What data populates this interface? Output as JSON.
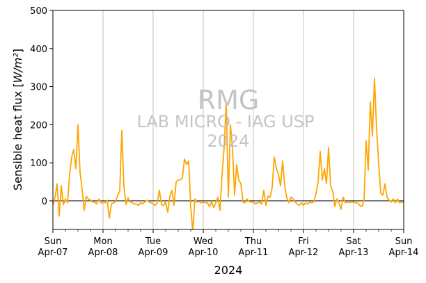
{
  "chart_data": {
    "type": "line",
    "ylabel": "Sensible heat flux [W/m²]",
    "xlabel": "2024",
    "ylim": [
      -75,
      500
    ],
    "yticks": [
      0,
      100,
      200,
      300,
      400,
      500
    ],
    "xlim": [
      "2024-04-07",
      "2024-04-14"
    ],
    "xticks": [
      {
        "date": "2024-04-07",
        "day": "Sun",
        "label": "Apr-07"
      },
      {
        "date": "2024-04-08",
        "day": "Mon",
        "label": "Apr-08"
      },
      {
        "date": "2024-04-09",
        "day": "Tue",
        "label": "Apr-09"
      },
      {
        "date": "2024-04-10",
        "day": "Wed",
        "label": "Apr-10"
      },
      {
        "date": "2024-04-11",
        "day": "Thu",
        "label": "Apr-11"
      },
      {
        "date": "2024-04-12",
        "day": "Fri",
        "label": "Apr-12"
      },
      {
        "date": "2024-04-13",
        "day": "Sat",
        "label": "Apr-13"
      },
      {
        "date": "2024-04-14",
        "day": "Sun",
        "label": "Apr-14"
      }
    ],
    "grid": "vertical",
    "zero_line": true,
    "series": [
      {
        "color": "#FFA500",
        "points": [
          [
            "2024-04-07T00:00",
            -12
          ],
          [
            "2024-04-07T01:00",
            8
          ],
          [
            "2024-04-07T02:00",
            45
          ],
          [
            "2024-04-07T03:00",
            -40
          ],
          [
            "2024-04-07T04:00",
            40
          ],
          [
            "2024-04-07T05:00",
            -10
          ],
          [
            "2024-04-07T06:00",
            5
          ],
          [
            "2024-04-07T07:00",
            -5
          ],
          [
            "2024-04-07T08:00",
            70
          ],
          [
            "2024-04-07T09:00",
            115
          ],
          [
            "2024-04-07T10:00",
            135
          ],
          [
            "2024-04-07T11:00",
            85
          ],
          [
            "2024-04-07T12:00",
            200
          ],
          [
            "2024-04-07T13:00",
            75
          ],
          [
            "2024-04-07T14:00",
            30
          ],
          [
            "2024-04-07T15:00",
            -25
          ],
          [
            "2024-04-07T16:00",
            12
          ],
          [
            "2024-04-07T17:00",
            5
          ],
          [
            "2024-04-07T18:00",
            2
          ],
          [
            "2024-04-07T19:00",
            -3
          ],
          [
            "2024-04-07T20:00",
            -3
          ],
          [
            "2024-04-07T21:00",
            -8
          ],
          [
            "2024-04-07T22:00",
            5
          ],
          [
            "2024-04-07T23:00",
            -5
          ],
          [
            "2024-04-08T00:00",
            -5
          ],
          [
            "2024-04-08T01:00",
            -5
          ],
          [
            "2024-04-08T02:00",
            2
          ],
          [
            "2024-04-08T03:00",
            -45
          ],
          [
            "2024-04-08T04:00",
            -8
          ],
          [
            "2024-04-08T05:00",
            -5
          ],
          [
            "2024-04-08T06:00",
            -2
          ],
          [
            "2024-04-08T07:00",
            15
          ],
          [
            "2024-04-08T08:00",
            25
          ],
          [
            "2024-04-08T09:00",
            185
          ],
          [
            "2024-04-08T10:00",
            40
          ],
          [
            "2024-04-08T11:00",
            -10
          ],
          [
            "2024-04-08T12:00",
            8
          ],
          [
            "2024-04-08T13:00",
            -3
          ],
          [
            "2024-04-08T14:00",
            -5
          ],
          [
            "2024-04-08T15:00",
            -8
          ],
          [
            "2024-04-08T16:00",
            -8
          ],
          [
            "2024-04-08T17:00",
            -12
          ],
          [
            "2024-04-08T18:00",
            -5
          ],
          [
            "2024-04-08T19:00",
            -8
          ],
          [
            "2024-04-08T20:00",
            -3
          ],
          [
            "2024-04-08T21:00",
            2
          ],
          [
            "2024-04-08T22:00",
            -3
          ],
          [
            "2024-04-08T23:00",
            -5
          ],
          [
            "2024-04-09T00:00",
            -8
          ],
          [
            "2024-04-09T01:00",
            -12
          ],
          [
            "2024-04-09T02:00",
            -5
          ],
          [
            "2024-04-09T03:00",
            28
          ],
          [
            "2024-04-09T04:00",
            -10
          ],
          [
            "2024-04-09T05:00",
            -12
          ],
          [
            "2024-04-09T06:00",
            -3
          ],
          [
            "2024-04-09T07:00",
            -30
          ],
          [
            "2024-04-09T08:00",
            12
          ],
          [
            "2024-04-09T09:00",
            28
          ],
          [
            "2024-04-09T10:00",
            -12
          ],
          [
            "2024-04-09T11:00",
            50
          ],
          [
            "2024-04-09T12:00",
            55
          ],
          [
            "2024-04-09T13:00",
            55
          ],
          [
            "2024-04-09T14:00",
            60
          ],
          [
            "2024-04-09T15:00",
            110
          ],
          [
            "2024-04-09T16:00",
            95
          ],
          [
            "2024-04-09T17:00",
            105
          ],
          [
            "2024-04-09T18:00",
            -15
          ],
          [
            "2024-04-09T19:00",
            -80
          ],
          [
            "2024-04-09T20:00",
            5
          ],
          [
            "2024-04-09T21:00",
            -3
          ],
          [
            "2024-04-09T22:00",
            -2
          ],
          [
            "2024-04-09T23:00",
            -5
          ],
          [
            "2024-04-10T00:00",
            -3
          ],
          [
            "2024-04-10T01:00",
            -5
          ],
          [
            "2024-04-10T02:00",
            -5
          ],
          [
            "2024-04-10T03:00",
            -15
          ],
          [
            "2024-04-10T04:00",
            -2
          ],
          [
            "2024-04-10T05:00",
            -18
          ],
          [
            "2024-04-10T06:00",
            -5
          ],
          [
            "2024-04-10T07:00",
            10
          ],
          [
            "2024-04-10T08:00",
            -25
          ],
          [
            "2024-04-10T09:00",
            70
          ],
          [
            "2024-04-10T10:00",
            140
          ],
          [
            "2024-04-10T11:00",
            260
          ],
          [
            "2024-04-10T12:00",
            10
          ],
          [
            "2024-04-10T13:00",
            200
          ],
          [
            "2024-04-10T14:00",
            140
          ],
          [
            "2024-04-10T15:00",
            15
          ],
          [
            "2024-04-10T16:00",
            95
          ],
          [
            "2024-04-10T17:00",
            55
          ],
          [
            "2024-04-10T18:00",
            45
          ],
          [
            "2024-04-10T19:00",
            -3
          ],
          [
            "2024-04-10T20:00",
            -5
          ],
          [
            "2024-04-10T21:00",
            5
          ],
          [
            "2024-04-10T22:00",
            -2
          ],
          [
            "2024-04-10T23:00",
            -3
          ],
          [
            "2024-04-11T00:00",
            -3
          ],
          [
            "2024-04-11T01:00",
            -8
          ],
          [
            "2024-04-11T02:00",
            -5
          ],
          [
            "2024-04-11T03:00",
            -3
          ],
          [
            "2024-04-11T04:00",
            -8
          ],
          [
            "2024-04-11T05:00",
            28
          ],
          [
            "2024-04-11T06:00",
            -12
          ],
          [
            "2024-04-11T07:00",
            12
          ],
          [
            "2024-04-11T08:00",
            10
          ],
          [
            "2024-04-11T09:00",
            35
          ],
          [
            "2024-04-11T10:00",
            115
          ],
          [
            "2024-04-11T11:00",
            85
          ],
          [
            "2024-04-11T12:00",
            70
          ],
          [
            "2024-04-11T13:00",
            40
          ],
          [
            "2024-04-11T14:00",
            105
          ],
          [
            "2024-04-11T15:00",
            40
          ],
          [
            "2024-04-11T16:00",
            8
          ],
          [
            "2024-04-11T17:00",
            -5
          ],
          [
            "2024-04-11T18:00",
            10
          ],
          [
            "2024-04-11T19:00",
            5
          ],
          [
            "2024-04-11T20:00",
            -3
          ],
          [
            "2024-04-11T21:00",
            -8
          ],
          [
            "2024-04-11T22:00",
            -12
          ],
          [
            "2024-04-11T23:00",
            -5
          ],
          [
            "2024-04-12T00:00",
            -12
          ],
          [
            "2024-04-12T01:00",
            -5
          ],
          [
            "2024-04-12T02:00",
            -8
          ],
          [
            "2024-04-12T03:00",
            -3
          ],
          [
            "2024-04-12T04:00",
            -5
          ],
          [
            "2024-04-12T05:00",
            -2
          ],
          [
            "2024-04-12T06:00",
            20
          ],
          [
            "2024-04-12T07:00",
            50
          ],
          [
            "2024-04-12T08:00",
            130
          ],
          [
            "2024-04-12T09:00",
            55
          ],
          [
            "2024-04-12T10:00",
            85
          ],
          [
            "2024-04-12T11:00",
            45
          ],
          [
            "2024-04-12T12:00",
            140
          ],
          [
            "2024-04-12T13:00",
            40
          ],
          [
            "2024-04-12T14:00",
            25
          ],
          [
            "2024-04-12T15:00",
            -15
          ],
          [
            "2024-04-12T16:00",
            5
          ],
          [
            "2024-04-12T17:00",
            -5
          ],
          [
            "2024-04-12T18:00",
            -22
          ],
          [
            "2024-04-12T19:00",
            10
          ],
          [
            "2024-04-12T20:00",
            -5
          ],
          [
            "2024-04-12T21:00",
            -3
          ],
          [
            "2024-04-12T22:00",
            -5
          ],
          [
            "2024-04-12T23:00",
            -3
          ],
          [
            "2024-04-13T00:00",
            -3
          ],
          [
            "2024-04-13T01:00",
            -5
          ],
          [
            "2024-04-13T02:00",
            -5
          ],
          [
            "2024-04-13T03:00",
            -12
          ],
          [
            "2024-04-13T04:00",
            -15
          ],
          [
            "2024-04-13T05:00",
            2
          ],
          [
            "2024-04-13T06:00",
            158
          ],
          [
            "2024-04-13T07:00",
            80
          ],
          [
            "2024-04-13T08:00",
            260
          ],
          [
            "2024-04-13T09:00",
            170
          ],
          [
            "2024-04-13T10:00",
            322
          ],
          [
            "2024-04-13T11:00",
            190
          ],
          [
            "2024-04-13T12:00",
            100
          ],
          [
            "2024-04-13T13:00",
            20
          ],
          [
            "2024-04-13T14:00",
            15
          ],
          [
            "2024-04-13T15:00",
            45
          ],
          [
            "2024-04-13T16:00",
            10
          ],
          [
            "2024-04-13T17:00",
            2
          ],
          [
            "2024-04-13T18:00",
            -3
          ],
          [
            "2024-04-13T19:00",
            5
          ],
          [
            "2024-04-13T20:00",
            -5
          ],
          [
            "2024-04-13T21:00",
            5
          ],
          [
            "2024-04-13T22:00",
            -5
          ],
          [
            "2024-04-13T23:00",
            -3
          ],
          [
            "2024-04-14T00:00",
            -5
          ]
        ]
      }
    ]
  },
  "watermark": {
    "title": "RMG",
    "subtitle": "LAB MICRO - IAG USP",
    "year": "2024"
  }
}
